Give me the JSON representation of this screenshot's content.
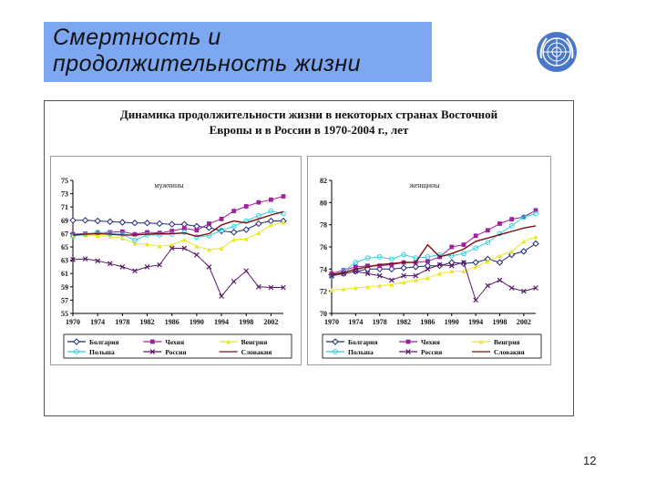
{
  "slide": {
    "title_line1": "Смертность и",
    "title_line2": "продолжительность жизни",
    "page_number": "12"
  },
  "figure": {
    "title_line1": "Динамика продолжительности жизни в некоторых странах Восточной",
    "title_line2": "Европы и в России в 1970-2004 г., лет"
  },
  "colors": {
    "title_box": "#7da7f0",
    "Болгария": "#1f2a7a",
    "Чехия": "#a020a0",
    "Венгрия": "#e8e820",
    "Польша": "#30d0e0",
    "Россия": "#5a1a6a",
    "Словакия": "#7a1010"
  },
  "chart_data": [
    {
      "type": "line",
      "title": "мужчины",
      "x_ticks": [
        "1970",
        "1974",
        "1978",
        "1982",
        "1986",
        "1990",
        "1994",
        "1998",
        "2002"
      ],
      "y_ticks": [
        "75",
        "73",
        "71",
        "69",
        "67",
        "65",
        "63",
        "61",
        "59",
        "57",
        "55"
      ],
      "ylim": [
        55,
        75
      ],
      "xlim": [
        1970,
        2004
      ],
      "legend_placement": "bottom",
      "series": [
        {
          "name": "Болгария",
          "marker": "diamond",
          "x": [
            1970,
            1972,
            1974,
            1976,
            1978,
            1980,
            1982,
            1984,
            1986,
            1988,
            1990,
            1992,
            1994,
            1996,
            1998,
            2000,
            2002,
            2004
          ],
          "y": [
            69.0,
            69.0,
            68.9,
            68.8,
            68.7,
            68.6,
            68.6,
            68.5,
            68.4,
            68.4,
            68.1,
            67.9,
            67.4,
            67.2,
            67.6,
            68.5,
            68.9,
            68.9
          ]
        },
        {
          "name": "Чехия",
          "marker": "square",
          "x": [
            1970,
            1972,
            1974,
            1976,
            1978,
            1980,
            1982,
            1984,
            1986,
            1988,
            1990,
            1992,
            1994,
            1996,
            1998,
            2000,
            2002,
            2004
          ],
          "y": [
            66.9,
            67.0,
            67.1,
            67.2,
            67.3,
            66.9,
            67.2,
            67.1,
            67.4,
            67.8,
            67.5,
            68.5,
            69.2,
            70.4,
            71.1,
            71.7,
            72.1,
            72.6
          ]
        },
        {
          "name": "Венгрия",
          "marker": "triangle",
          "x": [
            1970,
            1972,
            1974,
            1976,
            1978,
            1980,
            1982,
            1984,
            1986,
            1988,
            1990,
            1992,
            1994,
            1996,
            1998,
            2000,
            2002,
            2004
          ],
          "y": [
            66.7,
            66.8,
            66.7,
            66.6,
            66.3,
            65.5,
            65.4,
            65.1,
            65.3,
            66.1,
            65.1,
            64.6,
            64.8,
            66.1,
            66.2,
            67.1,
            68.3,
            68.7
          ]
        },
        {
          "name": "Польша",
          "marker": "circle",
          "x": [
            1970,
            1972,
            1974,
            1976,
            1978,
            1980,
            1982,
            1984,
            1986,
            1988,
            1990,
            1992,
            1994,
            1996,
            1998,
            2000,
            2002,
            2004
          ],
          "y": [
            66.6,
            66.9,
            67.2,
            67.0,
            66.9,
            66.0,
            66.8,
            66.8,
            66.9,
            67.2,
            66.5,
            66.7,
            67.5,
            68.1,
            68.9,
            69.7,
            70.4,
            70.0
          ]
        },
        {
          "name": "Россия",
          "marker": "x",
          "x": [
            1970,
            1972,
            1974,
            1976,
            1978,
            1980,
            1982,
            1984,
            1986,
            1988,
            1990,
            1992,
            1994,
            1996,
            1998,
            2000,
            2002,
            2004
          ],
          "y": [
            63.1,
            63.2,
            62.9,
            62.5,
            62.0,
            61.4,
            62.0,
            62.3,
            64.8,
            64.8,
            63.8,
            62.0,
            57.6,
            59.8,
            61.4,
            59.0,
            58.9,
            58.9
          ]
        },
        {
          "name": "Словакия",
          "marker": "line",
          "x": [
            1970,
            1972,
            1974,
            1976,
            1978,
            1980,
            1982,
            1984,
            1986,
            1988,
            1990,
            1992,
            1994,
            1996,
            1998,
            2000,
            2002,
            2004
          ],
          "y": [
            66.8,
            66.9,
            67.0,
            66.9,
            66.8,
            66.8,
            66.9,
            67.0,
            67.0,
            67.1,
            66.6,
            67.0,
            68.3,
            68.9,
            68.6,
            69.2,
            69.8,
            70.3
          ]
        }
      ]
    },
    {
      "type": "line",
      "title": "женщины",
      "x_ticks": [
        "1970",
        "1974",
        "1978",
        "1982",
        "1986",
        "1990",
        "1994",
        "1998",
        "2002"
      ],
      "y_ticks": [
        "82",
        "80",
        "78",
        "76",
        "74",
        "72",
        "70"
      ],
      "ylim": [
        70,
        82
      ],
      "xlim": [
        1970,
        2004
      ],
      "legend_placement": "bottom",
      "series": [
        {
          "name": "Болгария",
          "marker": "diamond",
          "x": [
            1970,
            1972,
            1974,
            1976,
            1978,
            1980,
            1982,
            1984,
            1986,
            1988,
            1990,
            1992,
            1994,
            1996,
            1998,
            2000,
            2002,
            2004
          ],
          "y": [
            73.5,
            73.6,
            73.8,
            74.0,
            74.0,
            74.0,
            74.1,
            74.2,
            74.3,
            74.3,
            74.6,
            74.5,
            74.6,
            74.9,
            74.6,
            75.3,
            75.6,
            76.3
          ]
        },
        {
          "name": "Чехия",
          "marker": "square",
          "x": [
            1970,
            1972,
            1974,
            1976,
            1978,
            1980,
            1982,
            1984,
            1986,
            1988,
            1990,
            1992,
            1994,
            1996,
            1998,
            2000,
            2002,
            2004
          ],
          "y": [
            73.6,
            73.9,
            74.2,
            74.3,
            74.3,
            74.4,
            74.6,
            74.6,
            74.7,
            75.1,
            76.0,
            76.2,
            77.0,
            77.5,
            78.1,
            78.5,
            78.7,
            79.3
          ]
        },
        {
          "name": "Венгрия",
          "marker": "triangle",
          "x": [
            1970,
            1972,
            1974,
            1976,
            1978,
            1980,
            1982,
            1984,
            1986,
            1988,
            1990,
            1992,
            1994,
            1996,
            1998,
            2000,
            2002,
            2004
          ],
          "y": [
            72.1,
            72.2,
            72.3,
            72.4,
            72.5,
            72.6,
            72.8,
            73.0,
            73.2,
            73.6,
            73.8,
            73.8,
            74.2,
            74.7,
            75.2,
            75.6,
            76.5,
            76.9
          ]
        },
        {
          "name": "Польша",
          "marker": "circle",
          "x": [
            1970,
            1972,
            1974,
            1976,
            1978,
            1980,
            1982,
            1984,
            1986,
            1988,
            1990,
            1992,
            1994,
            1996,
            1998,
            2000,
            2002,
            2004
          ],
          "y": [
            73.3,
            73.8,
            74.6,
            75.0,
            75.1,
            74.9,
            75.3,
            75.0,
            75.1,
            75.3,
            75.2,
            75.4,
            75.9,
            76.4,
            77.2,
            77.9,
            78.7,
            79.0
          ]
        },
        {
          "name": "Россия",
          "marker": "x",
          "x": [
            1970,
            1972,
            1974,
            1976,
            1978,
            1980,
            1982,
            1984,
            1986,
            1988,
            1990,
            1992,
            1994,
            1996,
            1998,
            2000,
            2002,
            2004
          ],
          "y": [
            73.4,
            73.6,
            73.8,
            73.6,
            73.4,
            73.0,
            73.4,
            73.4,
            74.0,
            74.4,
            74.3,
            74.6,
            71.2,
            72.5,
            73.0,
            72.3,
            72.0,
            72.3
          ]
        },
        {
          "name": "Словакия",
          "marker": "line",
          "x": [
            1970,
            1972,
            1974,
            1976,
            1978,
            1980,
            1982,
            1984,
            1986,
            1988,
            1990,
            1992,
            1994,
            1996,
            1998,
            2000,
            2002,
            2004
          ],
          "y": [
            73.5,
            73.7,
            74.0,
            74.2,
            74.4,
            74.5,
            74.6,
            74.6,
            76.2,
            75.1,
            75.4,
            75.8,
            76.5,
            76.8,
            77.1,
            77.4,
            77.7,
            77.9
          ]
        }
      ]
    }
  ]
}
